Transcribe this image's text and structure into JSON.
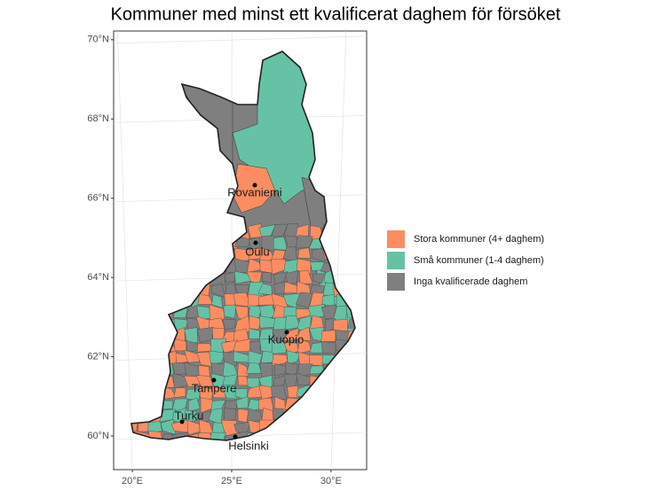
{
  "title": "Kommuner med minst ett kvalificerat daghem för försöket",
  "lat_ticks": [
    {
      "value": 60,
      "label": "60°N"
    },
    {
      "value": 62,
      "label": "62°N"
    },
    {
      "value": 64,
      "label": "64°N"
    },
    {
      "value": 66,
      "label": "66°N"
    },
    {
      "value": 68,
      "label": "68°N"
    },
    {
      "value": 70,
      "label": "70°N"
    }
  ],
  "lon_ticks": [
    {
      "value": 20,
      "label": "20°E"
    },
    {
      "value": 25,
      "label": "25°E"
    },
    {
      "value": 30,
      "label": "30°E"
    }
  ],
  "lat_range": [
    59.15,
    70.22
  ],
  "lon_range": [
    19.06,
    31.79
  ],
  "legend": [
    {
      "name": "Stora kommuner (4+ daghem)",
      "color": "#fc8d62"
    },
    {
      "name": "Små kommuner (1-4 daghem)",
      "color": "#66c2a5"
    },
    {
      "name": "Inga kvalificerade daghem",
      "color": "#7f7f7f"
    }
  ],
  "cities": [
    "Rovaniemi",
    "Oulu",
    "Kuopio",
    "Tampere",
    "Turku",
    "Helsinki"
  ]
}
